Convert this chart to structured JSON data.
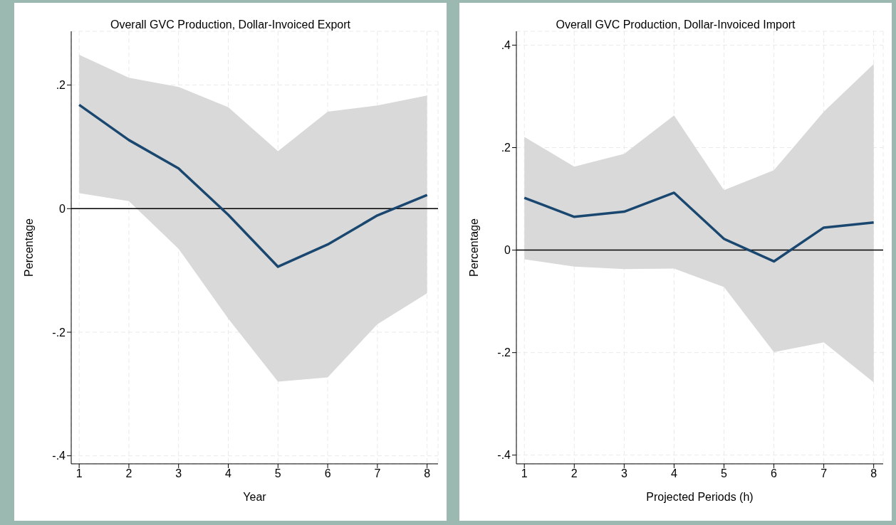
{
  "chart_data": [
    {
      "type": "line",
      "title": "Overall GVC Production, Dollar-Invoiced Export",
      "xlabel": "Year",
      "ylabel": "Percentage",
      "x": [
        1,
        2,
        3,
        4,
        5,
        6,
        7,
        8
      ],
      "series": [
        {
          "color": "#1a476f",
          "values": [
            0.168,
            0.111,
            0.065,
            -0.01,
            -0.094,
            -0.058,
            -0.011,
            0.022
          ],
          "lower": [
            0.025,
            0.012,
            -0.065,
            -0.178,
            -0.28,
            -0.273,
            -0.187,
            -0.137
          ],
          "upper": [
            0.249,
            0.212,
            0.197,
            0.164,
            0.093,
            0.157,
            0.167,
            0.183
          ]
        }
      ],
      "xlim": [
        0.84,
        8.22
      ],
      "xticks": [
        1,
        2,
        3,
        4,
        5,
        6,
        7,
        8
      ],
      "ylim": [
        -0.413,
        0.287
      ],
      "yticks": [
        {
          "value": -0.4,
          "label": "-.4"
        },
        {
          "value": -0.2,
          "label": "-.2"
        },
        0,
        {
          "value": 0.2,
          "label": ".2"
        }
      ],
      "ref_lines": [
        {
          "axis": "y",
          "value": 0,
          "color": "#000000"
        }
      ],
      "grid": true,
      "legend": false,
      "marker": "none",
      "line_style": "solid"
    },
    {
      "type": "line",
      "title": "Overall GVC Production, Dollar-Invoiced Import",
      "xlabel": "Projected Periods (h)",
      "ylabel": "Percentage",
      "x": [
        1,
        2,
        3,
        4,
        5,
        6,
        7,
        8
      ],
      "series": [
        {
          "color": "#1a476f",
          "values": [
            0.102,
            0.065,
            0.075,
            0.112,
            0.022,
            -0.022,
            0.044,
            0.054
          ],
          "lower": [
            -0.018,
            -0.032,
            -0.037,
            -0.036,
            -0.072,
            -0.199,
            -0.18,
            -0.258
          ],
          "upper": [
            0.221,
            0.163,
            0.188,
            0.263,
            0.117,
            0.156,
            0.27,
            0.363
          ]
        }
      ],
      "xlim": [
        0.84,
        8.19
      ],
      "xticks": [
        1,
        2,
        3,
        4,
        5,
        6,
        7,
        8
      ],
      "ylim": [
        -0.417,
        0.427
      ],
      "yticks": [
        {
          "value": -0.4,
          "label": "-.4"
        },
        {
          "value": -0.2,
          "label": "-.2"
        },
        0,
        {
          "value": 0.2,
          "label": ".2"
        },
        {
          "value": 0.4,
          "label": ".4"
        }
      ],
      "ref_lines": [
        {
          "axis": "y",
          "value": 0,
          "color": "#000000"
        }
      ],
      "grid": true,
      "legend": false,
      "marker": "none",
      "line_style": "solid"
    }
  ]
}
